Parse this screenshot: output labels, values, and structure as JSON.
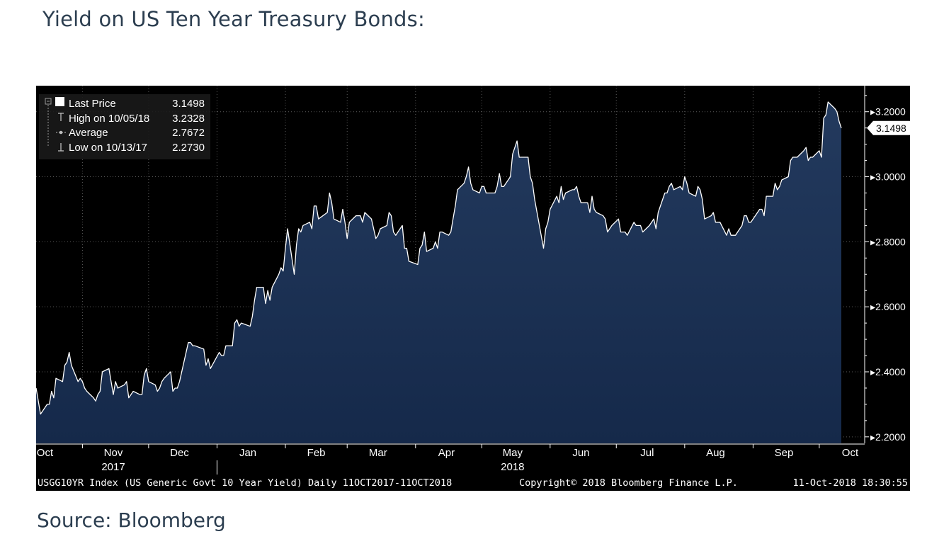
{
  "page": {
    "title": "Yield on US Ten Year Treasury Bonds:",
    "source": "Source: Bloomberg"
  },
  "legend": {
    "last_price_label": "Last Price",
    "last_price_value": "3.1498",
    "high_label": "High on 10/05/18",
    "high_value": "3.2328",
    "average_label": "Average",
    "average_value": "2.7672",
    "low_label": "Low on 10/13/17",
    "low_value": "2.2730"
  },
  "footer": {
    "series": "USGG10YR Index (US Generic Govt 10 Year Yield)  Daily 11OCT2017-11OCT2018",
    "copyright": "Copyright© 2018 Bloomberg Finance L.P.",
    "timestamp": "11-Oct-2018 18:30:55"
  },
  "colors": {
    "background": "#000000",
    "area_top": "#233a5e",
    "area_bottom": "#15294a",
    "line": "#ffffff",
    "grid": "#5a5a5a",
    "text": "#ffffff"
  },
  "chart_data": {
    "type": "area",
    "title": "",
    "xlabel": "",
    "ylabel": "",
    "ylim": [
      2.18,
      3.28
    ],
    "x_range": [
      "2017-10-11",
      "2018-10-11"
    ],
    "y_ticks": [
      2.2,
      2.4,
      2.6,
      2.8,
      3.0,
      3.2
    ],
    "y_tick_labels": [
      "2.2000",
      "2.4000",
      "2.6000",
      "2.8000",
      "3.0000",
      "3.2000"
    ],
    "last_value_label": "3.1498",
    "month_ticks": [
      {
        "label": "Oct",
        "date": "2017-10-15"
      },
      {
        "label": "Nov",
        "date": "2017-11-15"
      },
      {
        "label": "Dec",
        "date": "2017-12-15"
      },
      {
        "label": "Jan",
        "date": "2018-01-15"
      },
      {
        "label": "Feb",
        "date": "2018-02-15"
      },
      {
        "label": "Mar",
        "date": "2018-03-15"
      },
      {
        "label": "Apr",
        "date": "2018-04-15"
      },
      {
        "label": "May",
        "date": "2018-05-15"
      },
      {
        "label": "Jun",
        "date": "2018-06-15"
      },
      {
        "label": "Jul",
        "date": "2018-07-15"
      },
      {
        "label": "Aug",
        "date": "2018-08-15"
      },
      {
        "label": "Sep",
        "date": "2018-09-15"
      },
      {
        "label": "Oct",
        "date": "2018-10-15"
      }
    ],
    "month_boundaries": [
      "2017-11-01",
      "2017-12-01",
      "2018-01-01",
      "2018-02-01",
      "2018-03-01",
      "2018-04-01",
      "2018-05-01",
      "2018-06-01",
      "2018-07-01",
      "2018-08-01",
      "2018-09-01",
      "2018-10-01"
    ],
    "year_labels": [
      {
        "label": "2017",
        "date": "2017-11-15"
      },
      {
        "label": "2018",
        "date": "2018-05-15"
      }
    ],
    "series": [
      {
        "name": "USGG10YR Index",
        "points": [
          [
            "2017-10-11",
            2.35
          ],
          [
            "2017-10-13",
            2.27
          ],
          [
            "2017-10-16",
            2.3
          ],
          [
            "2017-10-17",
            2.3
          ],
          [
            "2017-10-18",
            2.34
          ],
          [
            "2017-10-19",
            2.32
          ],
          [
            "2017-10-20",
            2.38
          ],
          [
            "2017-10-23",
            2.37
          ],
          [
            "2017-10-24",
            2.42
          ],
          [
            "2017-10-25",
            2.43
          ],
          [
            "2017-10-26",
            2.46
          ],
          [
            "2017-10-27",
            2.42
          ],
          [
            "2017-10-30",
            2.37
          ],
          [
            "2017-10-31",
            2.38
          ],
          [
            "2017-11-01",
            2.37
          ],
          [
            "2017-11-02",
            2.35
          ],
          [
            "2017-11-03",
            2.34
          ],
          [
            "2017-11-06",
            2.32
          ],
          [
            "2017-11-07",
            2.31
          ],
          [
            "2017-11-08",
            2.33
          ],
          [
            "2017-11-09",
            2.34
          ],
          [
            "2017-11-10",
            2.4
          ],
          [
            "2017-11-13",
            2.41
          ],
          [
            "2017-11-14",
            2.37
          ],
          [
            "2017-11-15",
            2.33
          ],
          [
            "2017-11-16",
            2.37
          ],
          [
            "2017-11-17",
            2.35
          ],
          [
            "2017-11-20",
            2.36
          ],
          [
            "2017-11-21",
            2.37
          ],
          [
            "2017-11-22",
            2.32
          ],
          [
            "2017-11-24",
            2.34
          ],
          [
            "2017-11-27",
            2.33
          ],
          [
            "2017-11-28",
            2.33
          ],
          [
            "2017-11-29",
            2.39
          ],
          [
            "2017-11-30",
            2.41
          ],
          [
            "2017-12-01",
            2.37
          ],
          [
            "2017-12-04",
            2.36
          ],
          [
            "2017-12-05",
            2.34
          ],
          [
            "2017-12-06",
            2.35
          ],
          [
            "2017-12-07",
            2.37
          ],
          [
            "2017-12-08",
            2.38
          ],
          [
            "2017-12-11",
            2.4
          ],
          [
            "2017-12-12",
            2.34
          ],
          [
            "2017-12-13",
            2.35
          ],
          [
            "2017-12-14",
            2.35
          ],
          [
            "2017-12-15",
            2.37
          ],
          [
            "2017-12-18",
            2.46
          ],
          [
            "2017-12-19",
            2.49
          ],
          [
            "2017-12-20",
            2.49
          ],
          [
            "2017-12-21",
            2.48
          ],
          [
            "2017-12-22",
            2.48
          ],
          [
            "2017-12-26",
            2.47
          ],
          [
            "2017-12-27",
            2.42
          ],
          [
            "2017-12-28",
            2.44
          ],
          [
            "2017-12-29",
            2.41
          ],
          [
            "2018-01-02",
            2.46
          ],
          [
            "2018-01-03",
            2.45
          ],
          [
            "2018-01-04",
            2.45
          ],
          [
            "2018-01-05",
            2.48
          ],
          [
            "2018-01-08",
            2.48
          ],
          [
            "2018-01-09",
            2.55
          ],
          [
            "2018-01-10",
            2.56
          ],
          [
            "2018-01-11",
            2.54
          ],
          [
            "2018-01-12",
            2.55
          ],
          [
            "2018-01-16",
            2.54
          ],
          [
            "2018-01-17",
            2.57
          ],
          [
            "2018-01-18",
            2.62
          ],
          [
            "2018-01-19",
            2.66
          ],
          [
            "2018-01-22",
            2.66
          ],
          [
            "2018-01-23",
            2.61
          ],
          [
            "2018-01-24",
            2.65
          ],
          [
            "2018-01-25",
            2.62
          ],
          [
            "2018-01-26",
            2.66
          ],
          [
            "2018-01-29",
            2.7
          ],
          [
            "2018-01-30",
            2.72
          ],
          [
            "2018-01-31",
            2.71
          ],
          [
            "2018-02-01",
            2.78
          ],
          [
            "2018-02-02",
            2.84
          ],
          [
            "2018-02-05",
            2.7
          ],
          [
            "2018-02-06",
            2.79
          ],
          [
            "2018-02-07",
            2.84
          ],
          [
            "2018-02-08",
            2.83
          ],
          [
            "2018-02-09",
            2.85
          ],
          [
            "2018-02-12",
            2.86
          ],
          [
            "2018-02-13",
            2.84
          ],
          [
            "2018-02-14",
            2.91
          ],
          [
            "2018-02-15",
            2.91
          ],
          [
            "2018-02-16",
            2.87
          ],
          [
            "2018-02-20",
            2.89
          ],
          [
            "2018-02-21",
            2.95
          ],
          [
            "2018-02-22",
            2.92
          ],
          [
            "2018-02-23",
            2.87
          ],
          [
            "2018-02-26",
            2.86
          ],
          [
            "2018-02-27",
            2.9
          ],
          [
            "2018-02-28",
            2.86
          ],
          [
            "2018-03-01",
            2.81
          ],
          [
            "2018-03-02",
            2.86
          ],
          [
            "2018-03-05",
            2.88
          ],
          [
            "2018-03-06",
            2.88
          ],
          [
            "2018-03-07",
            2.88
          ],
          [
            "2018-03-08",
            2.86
          ],
          [
            "2018-03-09",
            2.89
          ],
          [
            "2018-03-12",
            2.87
          ],
          [
            "2018-03-13",
            2.84
          ],
          [
            "2018-03-14",
            2.81
          ],
          [
            "2018-03-15",
            2.82
          ],
          [
            "2018-03-16",
            2.84
          ],
          [
            "2018-03-19",
            2.85
          ],
          [
            "2018-03-20",
            2.89
          ],
          [
            "2018-03-21",
            2.88
          ],
          [
            "2018-03-22",
            2.83
          ],
          [
            "2018-03-23",
            2.82
          ],
          [
            "2018-03-26",
            2.85
          ],
          [
            "2018-03-27",
            2.78
          ],
          [
            "2018-03-28",
            2.78
          ],
          [
            "2018-03-29",
            2.74
          ],
          [
            "2018-04-02",
            2.73
          ],
          [
            "2018-04-03",
            2.78
          ],
          [
            "2018-04-04",
            2.79
          ],
          [
            "2018-04-05",
            2.83
          ],
          [
            "2018-04-06",
            2.77
          ],
          [
            "2018-04-09",
            2.78
          ],
          [
            "2018-04-10",
            2.8
          ],
          [
            "2018-04-11",
            2.78
          ],
          [
            "2018-04-12",
            2.83
          ],
          [
            "2018-04-13",
            2.83
          ],
          [
            "2018-04-16",
            2.82
          ],
          [
            "2018-04-17",
            2.83
          ],
          [
            "2018-04-18",
            2.87
          ],
          [
            "2018-04-19",
            2.91
          ],
          [
            "2018-04-20",
            2.96
          ],
          [
            "2018-04-23",
            2.98
          ],
          [
            "2018-04-24",
            3.0
          ],
          [
            "2018-04-25",
            3.03
          ],
          [
            "2018-04-26",
            2.98
          ],
          [
            "2018-04-27",
            2.96
          ],
          [
            "2018-04-30",
            2.95
          ],
          [
            "2018-05-01",
            2.97
          ],
          [
            "2018-05-02",
            2.97
          ],
          [
            "2018-05-03",
            2.95
          ],
          [
            "2018-05-04",
            2.95
          ],
          [
            "2018-05-07",
            2.95
          ],
          [
            "2018-05-08",
            2.97
          ],
          [
            "2018-05-09",
            3.01
          ],
          [
            "2018-05-10",
            2.97
          ],
          [
            "2018-05-11",
            2.97
          ],
          [
            "2018-05-14",
            3.0
          ],
          [
            "2018-05-15",
            3.07
          ],
          [
            "2018-05-16",
            3.09
          ],
          [
            "2018-05-17",
            3.11
          ],
          [
            "2018-05-18",
            3.06
          ],
          [
            "2018-05-21",
            3.06
          ],
          [
            "2018-05-22",
            3.06
          ],
          [
            "2018-05-23",
            3.0
          ],
          [
            "2018-05-24",
            2.98
          ],
          [
            "2018-05-25",
            2.93
          ],
          [
            "2018-05-29",
            2.78
          ],
          [
            "2018-05-30",
            2.84
          ],
          [
            "2018-05-31",
            2.86
          ],
          [
            "2018-06-01",
            2.9
          ],
          [
            "2018-06-04",
            2.94
          ],
          [
            "2018-06-05",
            2.92
          ],
          [
            "2018-06-06",
            2.97
          ],
          [
            "2018-06-07",
            2.93
          ],
          [
            "2018-06-08",
            2.95
          ],
          [
            "2018-06-11",
            2.96
          ],
          [
            "2018-06-12",
            2.96
          ],
          [
            "2018-06-13",
            2.97
          ],
          [
            "2018-06-14",
            2.94
          ],
          [
            "2018-06-15",
            2.92
          ],
          [
            "2018-06-18",
            2.92
          ],
          [
            "2018-06-19",
            2.89
          ],
          [
            "2018-06-20",
            2.94
          ],
          [
            "2018-06-21",
            2.9
          ],
          [
            "2018-06-22",
            2.89
          ],
          [
            "2018-06-25",
            2.88
          ],
          [
            "2018-06-26",
            2.87
          ],
          [
            "2018-06-27",
            2.83
          ],
          [
            "2018-06-28",
            2.84
          ],
          [
            "2018-06-29",
            2.85
          ],
          [
            "2018-07-02",
            2.87
          ],
          [
            "2018-07-03",
            2.83
          ],
          [
            "2018-07-05",
            2.83
          ],
          [
            "2018-07-06",
            2.82
          ],
          [
            "2018-07-09",
            2.86
          ],
          [
            "2018-07-10",
            2.85
          ],
          [
            "2018-07-11",
            2.85
          ],
          [
            "2018-07-12",
            2.85
          ],
          [
            "2018-07-13",
            2.83
          ],
          [
            "2018-07-16",
            2.85
          ],
          [
            "2018-07-17",
            2.86
          ],
          [
            "2018-07-18",
            2.87
          ],
          [
            "2018-07-19",
            2.84
          ],
          [
            "2018-07-20",
            2.89
          ],
          [
            "2018-07-23",
            2.95
          ],
          [
            "2018-07-24",
            2.95
          ],
          [
            "2018-07-25",
            2.97
          ],
          [
            "2018-07-26",
            2.98
          ],
          [
            "2018-07-27",
            2.96
          ],
          [
            "2018-07-30",
            2.97
          ],
          [
            "2018-07-31",
            2.96
          ],
          [
            "2018-08-01",
            3.0
          ],
          [
            "2018-08-02",
            2.98
          ],
          [
            "2018-08-03",
            2.95
          ],
          [
            "2018-08-06",
            2.94
          ],
          [
            "2018-08-07",
            2.97
          ],
          [
            "2018-08-08",
            2.96
          ],
          [
            "2018-08-09",
            2.93
          ],
          [
            "2018-08-10",
            2.87
          ],
          [
            "2018-08-13",
            2.88
          ],
          [
            "2018-08-14",
            2.89
          ],
          [
            "2018-08-15",
            2.86
          ],
          [
            "2018-08-16",
            2.86
          ],
          [
            "2018-08-17",
            2.86
          ],
          [
            "2018-08-20",
            2.82
          ],
          [
            "2018-08-21",
            2.84
          ],
          [
            "2018-08-22",
            2.82
          ],
          [
            "2018-08-23",
            2.82
          ],
          [
            "2018-08-24",
            2.82
          ],
          [
            "2018-08-27",
            2.85
          ],
          [
            "2018-08-28",
            2.88
          ],
          [
            "2018-08-29",
            2.88
          ],
          [
            "2018-08-30",
            2.86
          ],
          [
            "2018-08-31",
            2.86
          ],
          [
            "2018-09-04",
            2.9
          ],
          [
            "2018-09-05",
            2.9
          ],
          [
            "2018-09-06",
            2.88
          ],
          [
            "2018-09-07",
            2.94
          ],
          [
            "2018-09-10",
            2.94
          ],
          [
            "2018-09-11",
            2.98
          ],
          [
            "2018-09-12",
            2.96
          ],
          [
            "2018-09-13",
            2.97
          ],
          [
            "2018-09-14",
            2.99
          ],
          [
            "2018-09-17",
            3.0
          ],
          [
            "2018-09-18",
            3.05
          ],
          [
            "2018-09-19",
            3.06
          ],
          [
            "2018-09-20",
            3.06
          ],
          [
            "2018-09-21",
            3.06
          ],
          [
            "2018-09-24",
            3.08
          ],
          [
            "2018-09-25",
            3.09
          ],
          [
            "2018-09-26",
            3.05
          ],
          [
            "2018-09-27",
            3.06
          ],
          [
            "2018-09-28",
            3.06
          ],
          [
            "2018-10-01",
            3.08
          ],
          [
            "2018-10-02",
            3.06
          ],
          [
            "2018-10-03",
            3.18
          ],
          [
            "2018-10-04",
            3.19
          ],
          [
            "2018-10-05",
            3.23
          ],
          [
            "2018-10-08",
            3.21
          ],
          [
            "2018-10-09",
            3.2
          ],
          [
            "2018-10-10",
            3.17
          ],
          [
            "2018-10-11",
            3.1498
          ]
        ]
      }
    ]
  }
}
